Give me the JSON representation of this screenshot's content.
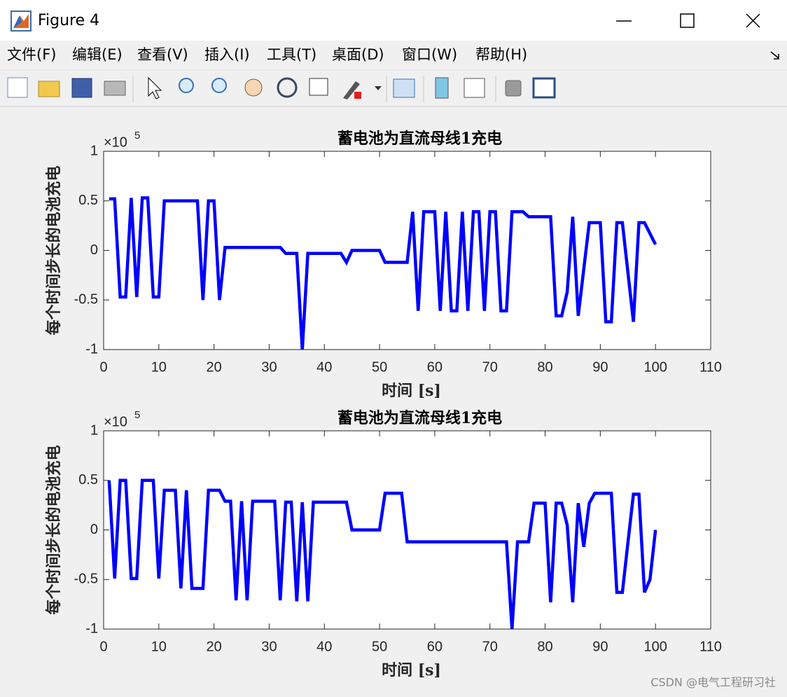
{
  "window": {
    "title": "Figure 4",
    "menus": [
      "文件(F)",
      "编辑(E)",
      "查看(V)",
      "插入(I)",
      "工具(T)",
      "桌面(D)",
      "窗口(W)",
      "帮助(H)"
    ],
    "watermark": "CSDN @电气工程研习社"
  },
  "chart_data": [
    {
      "type": "line",
      "title": "蓄电池为直流母线1充电",
      "xlabel": "时间 [s]",
      "ylabel": "每个时间步长的电池充电",
      "y_exponent": {
        "base": "×10",
        "power": "5"
      },
      "xlim": [
        0,
        110
      ],
      "ylim": [
        -1,
        1
      ],
      "xticks": [
        0,
        10,
        20,
        30,
        40,
        50,
        60,
        70,
        80,
        90,
        100,
        110
      ],
      "yticks": [
        -1,
        -0.5,
        0,
        0.5,
        1
      ],
      "grid": false,
      "x": [
        1,
        2,
        3,
        4,
        5,
        6,
        7,
        8,
        9,
        10,
        11,
        12,
        13,
        14,
        15,
        16,
        17,
        18,
        19,
        20,
        21,
        22,
        23,
        24,
        25,
        26,
        27,
        28,
        29,
        30,
        31,
        32,
        33,
        34,
        35,
        36,
        37,
        38,
        39,
        40,
        41,
        42,
        43,
        44,
        45,
        46,
        47,
        48,
        49,
        50,
        51,
        52,
        53,
        54,
        55,
        56,
        57,
        58,
        59,
        60,
        61,
        62,
        63,
        64,
        65,
        66,
        67,
        68,
        69,
        70,
        71,
        72,
        73,
        74,
        75,
        76,
        77,
        78,
        79,
        80,
        81,
        82,
        83,
        84,
        85,
        86,
        87,
        88,
        89,
        90,
        91,
        92,
        93,
        94,
        95,
        96,
        97,
        98,
        99,
        100
      ],
      "series": [
        {
          "color": "#0000ff",
          "values": [
            0.52,
            0.52,
            -0.47,
            -0.47,
            0.53,
            -0.47,
            0.53,
            0.53,
            -0.47,
            -0.47,
            0.5,
            0.5,
            0.5,
            0.5,
            0.5,
            0.5,
            0.5,
            -0.5,
            0.5,
            0.5,
            -0.5,
            0.03,
            0.03,
            0.03,
            0.03,
            0.03,
            0.03,
            0.03,
            0.03,
            0.03,
            0.03,
            0.03,
            -0.03,
            -0.03,
            -0.03,
            -1,
            -0.03,
            -0.03,
            -0.03,
            -0.03,
            -0.03,
            -0.03,
            -0.03,
            -0.12,
            0,
            0,
            0,
            0,
            0,
            0,
            -0.12,
            -0.12,
            -0.12,
            -0.12,
            -0.12,
            0.39,
            -0.61,
            0.39,
            0.39,
            0.39,
            -0.61,
            0.39,
            -0.61,
            -0.61,
            0.39,
            -0.61,
            0.39,
            0.39,
            -0.61,
            0.39,
            0.39,
            -0.61,
            -0.61,
            0.39,
            0.39,
            0.39,
            0.34,
            0.34,
            0.34,
            0.34,
            0.34,
            -0.66,
            -0.66,
            -0.42,
            0.34,
            -0.66,
            -0.19,
            0.28,
            0.28,
            0.28,
            -0.72,
            -0.72,
            0.28,
            0.28,
            -0.22,
            -0.72,
            0.28,
            0.28,
            0.17,
            0.06
          ]
        }
      ]
    },
    {
      "type": "line",
      "title": "蓄电池为直流母线1充电",
      "xlabel": "时间 [s]",
      "ylabel": "每个时间步长的电池充电",
      "y_exponent": {
        "base": "×10",
        "power": "5"
      },
      "xlim": [
        0,
        110
      ],
      "ylim": [
        -1,
        1
      ],
      "xticks": [
        0,
        10,
        20,
        30,
        40,
        50,
        60,
        70,
        80,
        90,
        100,
        110
      ],
      "yticks": [
        -1,
        -0.5,
        0,
        0.5,
        1
      ],
      "grid": false,
      "x": [
        1,
        2,
        3,
        4,
        5,
        6,
        7,
        8,
        9,
        10,
        11,
        12,
        13,
        14,
        15,
        16,
        17,
        18,
        19,
        20,
        21,
        22,
        23,
        24,
        25,
        26,
        27,
        28,
        29,
        30,
        31,
        32,
        33,
        34,
        35,
        36,
        37,
        38,
        39,
        40,
        41,
        42,
        43,
        44,
        45,
        46,
        47,
        48,
        49,
        50,
        51,
        52,
        53,
        54,
        55,
        56,
        57,
        58,
        59,
        60,
        61,
        62,
        63,
        64,
        65,
        66,
        67,
        68,
        69,
        70,
        71,
        72,
        73,
        74,
        75,
        76,
        77,
        78,
        79,
        80,
        81,
        82,
        83,
        84,
        85,
        86,
        87,
        88,
        89,
        90,
        91,
        92,
        93,
        94,
        95,
        96,
        97,
        98,
        99,
        100
      ],
      "series": [
        {
          "color": "#0000ff",
          "values": [
            0.5,
            -0.49,
            0.5,
            0.5,
            -0.49,
            -0.49,
            0.5,
            0.5,
            0.5,
            -0.49,
            0.4,
            0.4,
            0.4,
            -0.59,
            0.4,
            -0.59,
            -0.59,
            -0.59,
            0.4,
            0.4,
            0.4,
            0.29,
            0.29,
            -0.71,
            0.29,
            -0.71,
            0.29,
            0.29,
            0.29,
            0.29,
            0.29,
            -0.71,
            0.28,
            0.28,
            -0.72,
            0.28,
            -0.72,
            0.28,
            0.28,
            0.28,
            0.28,
            0.28,
            0.28,
            0.28,
            0,
            0,
            0,
            0,
            0,
            0,
            0.37,
            0.37,
            0.37,
            0.37,
            -0.12,
            -0.12,
            -0.12,
            -0.12,
            -0.12,
            -0.12,
            -0.12,
            -0.12,
            -0.12,
            -0.12,
            -0.12,
            -0.12,
            -0.12,
            -0.12,
            -0.12,
            -0.12,
            -0.12,
            -0.12,
            -0.12,
            -1,
            -0.12,
            -0.12,
            -0.12,
            0.27,
            0.27,
            0.27,
            -0.73,
            0.27,
            0.27,
            0.05,
            -0.73,
            0.27,
            -0.17,
            0.27,
            0.37,
            0.37,
            0.37,
            0.37,
            -0.63,
            -0.63,
            -0.13,
            0.36,
            0.36,
            -0.63,
            -0.5,
            0
          ]
        }
      ]
    }
  ]
}
